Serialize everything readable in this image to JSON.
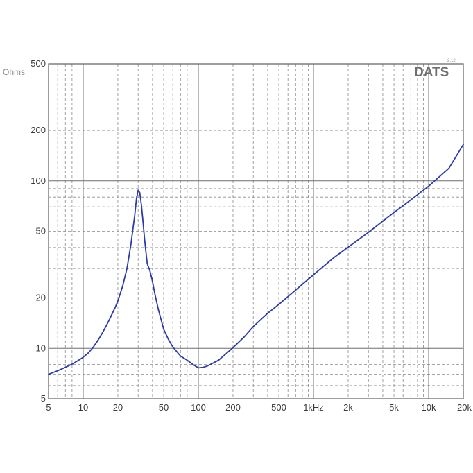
{
  "brand": {
    "name": "DATS",
    "version": "2.12"
  },
  "chart_data": {
    "type": "line",
    "title": "",
    "xlabel": "",
    "ylabel": "Ohms",
    "xscale": "log",
    "yscale": "log",
    "xlim": [
      5,
      20000
    ],
    "ylim": [
      5,
      500
    ],
    "grid": true,
    "x_ticks": [
      {
        "value": 5,
        "label": "5"
      },
      {
        "value": 10,
        "label": "10"
      },
      {
        "value": 20,
        "label": "20"
      },
      {
        "value": 50,
        "label": "50"
      },
      {
        "value": 100,
        "label": "100"
      },
      {
        "value": 200,
        "label": "200"
      },
      {
        "value": 500,
        "label": "500"
      },
      {
        "value": 1000,
        "label": "1kHz"
      },
      {
        "value": 2000,
        "label": "2k"
      },
      {
        "value": 5000,
        "label": "5k"
      },
      {
        "value": 10000,
        "label": "10k"
      },
      {
        "value": 20000,
        "label": "20k"
      }
    ],
    "y_ticks": [
      {
        "value": 5,
        "label": "5"
      },
      {
        "value": 10,
        "label": "10"
      },
      {
        "value": 20,
        "label": "20"
      },
      {
        "value": 50,
        "label": "50"
      },
      {
        "value": 100,
        "label": "100"
      },
      {
        "value": 200,
        "label": "200"
      },
      {
        "value": 500,
        "label": "500"
      }
    ],
    "colors": {
      "line": "#2b3aa8",
      "grid_major": "#6f6f6f",
      "grid_minor": "#8a8a8a"
    },
    "series": [
      {
        "x": [
          5,
          6,
          7,
          8,
          9,
          10,
          11,
          12,
          13,
          14,
          15,
          16,
          17,
          18,
          19,
          20,
          22,
          24,
          26,
          28,
          29,
          30,
          31,
          32,
          33,
          34,
          35,
          36,
          38,
          40,
          42,
          45,
          50,
          55,
          60,
          70,
          80,
          90,
          100,
          110,
          120,
          150,
          200,
          250,
          300,
          400,
          500,
          700,
          1000,
          1500,
          2000,
          3000,
          5000,
          7000,
          10000,
          15000,
          20000
        ],
        "y": [
          7.0,
          7.35,
          7.7,
          8.05,
          8.45,
          8.85,
          9.35,
          10.0,
          10.8,
          11.7,
          12.7,
          13.8,
          15.0,
          16.3,
          17.6,
          19.2,
          23.5,
          30.0,
          42.0,
          62.0,
          78.0,
          88.0,
          85.0,
          72.0,
          58.0,
          46.0,
          38.0,
          32.0,
          29.0,
          25.0,
          21.0,
          17.0,
          13.0,
          11.3,
          10.2,
          9.0,
          8.5,
          8.0,
          7.65,
          7.7,
          7.85,
          8.5,
          10.1,
          11.7,
          13.5,
          16.2,
          18.3,
          22.3,
          27.5,
          34.8,
          40.2,
          49.3,
          64.8,
          77.0,
          93.0,
          119.0,
          165.0
        ]
      }
    ]
  }
}
